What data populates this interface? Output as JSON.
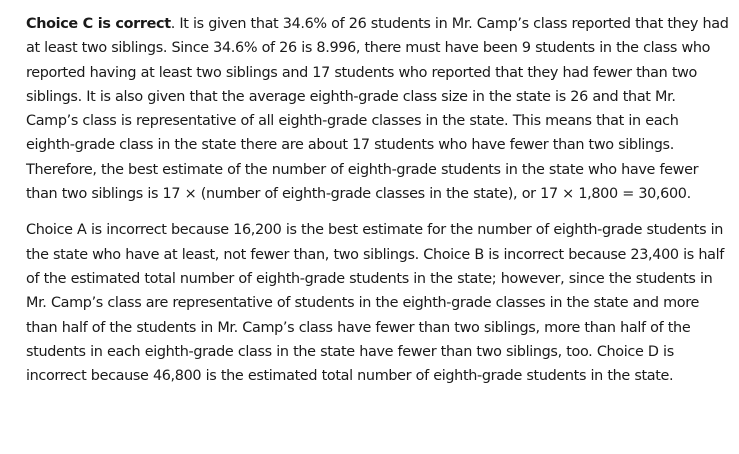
{
  "paragraph1": {
    "bold_lead": "Choice C is correct",
    "text": ". It is given that 34.6% of 26 students in Mr. Camp’s class reported that they had at least two siblings. Since 34.6% of 26 is 8.996, there must have been 9 students in the class who reported having at least two siblings and 17 students who reported that they had fewer than two siblings. It is also given that the average eighth-grade class size in the state is 26 and that Mr. Camp’s class is representative of all eighth-grade classes in the state. This means that in each eighth-grade class in the state there are about 17 students who have fewer than two siblings. Therefore, the best estimate of the number of eighth-grade students in the state who have fewer than two siblings is 17 × (number of eighth-grade classes in the state), or 17 × 1,800 = 30,600."
  },
  "paragraph2": {
    "text": "Choice A is incorrect because 16,200 is the best estimate for the number of eighth-grade students in the state who have at least, not fewer than, two siblings. Choice B is incorrect because 23,400 is half of the estimated total number of eighth-grade students in the state; however, since the students in Mr. Camp’s class are representative of students in the eighth-grade classes in the state and more than half of the students in Mr. Camp’s class have fewer than two siblings, more than half of the students in each eighth-grade class in the state have fewer than two siblings, too. Choice D is incorrect because 46,800 is the estimated total number of eighth-grade students in the state."
  }
}
